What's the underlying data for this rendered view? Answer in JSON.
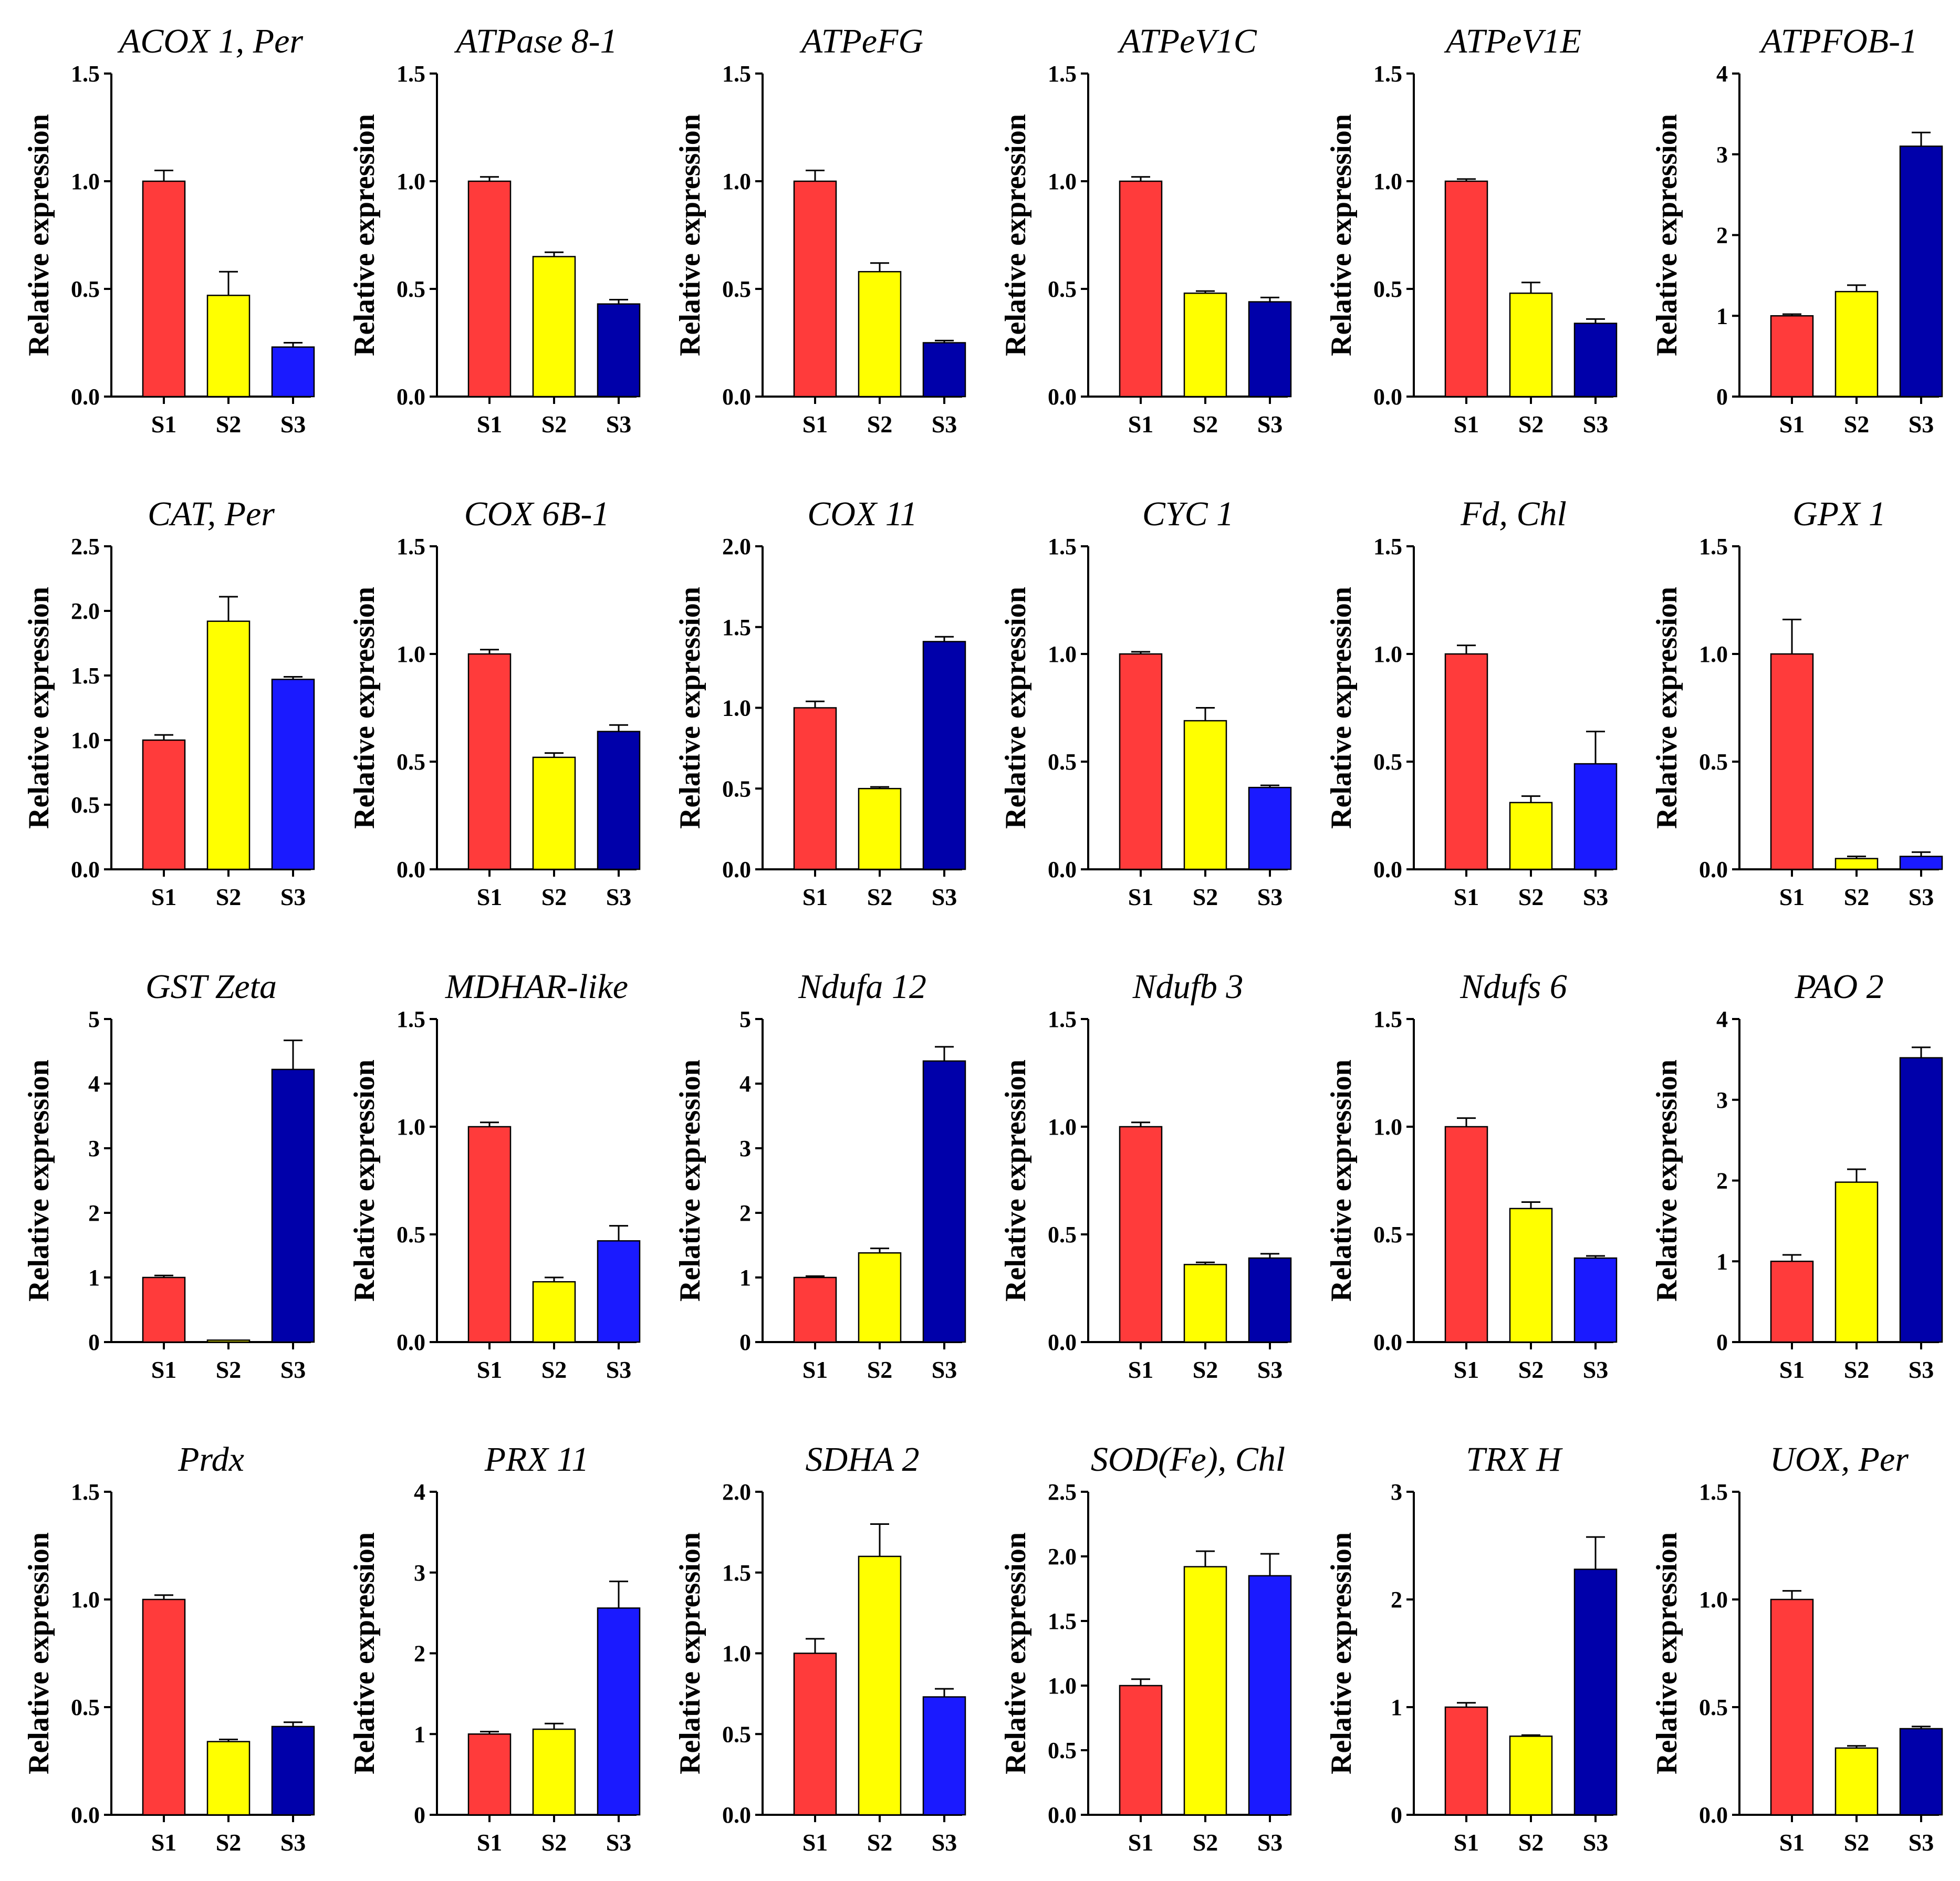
{
  "figure": {
    "ylabel": "Relative expression"
  },
  "colors": {
    "S1": "#ff3b3b",
    "S2": "#ffff00",
    "S3_light": "#1a1aff",
    "S3_dark": "#0000aa",
    "axis": "#000000"
  },
  "chart_data": [
    {
      "type": "bar",
      "title": "ACOX 1, Per",
      "ylabel": "Relative expression",
      "categories": [
        "S1",
        "S2",
        "S3"
      ],
      "values": [
        1.0,
        0.47,
        0.23
      ],
      "errors": [
        0.05,
        0.11,
        0.02
      ],
      "ylim": [
        0,
        1.5
      ],
      "yticks": [
        "0.0",
        "0.5",
        "1.0",
        "1.5"
      ],
      "s3_color": "light"
    },
    {
      "type": "bar",
      "title": "ATPase 8-1",
      "ylabel": "Relative expression",
      "categories": [
        "S1",
        "S2",
        "S3"
      ],
      "values": [
        1.0,
        0.65,
        0.43
      ],
      "errors": [
        0.02,
        0.02,
        0.02
      ],
      "ylim": [
        0,
        1.5
      ],
      "yticks": [
        "0.0",
        "0.5",
        "1.0",
        "1.5"
      ],
      "s3_color": "dark"
    },
    {
      "type": "bar",
      "title": "ATPeFG",
      "ylabel": "Relative expression",
      "categories": [
        "S1",
        "S2",
        "S3"
      ],
      "values": [
        1.0,
        0.58,
        0.25
      ],
      "errors": [
        0.05,
        0.04,
        0.01
      ],
      "ylim": [
        0,
        1.5
      ],
      "yticks": [
        "0.0",
        "0.5",
        "1.0",
        "1.5"
      ],
      "s3_color": "dark"
    },
    {
      "type": "bar",
      "title": "ATPeV1C",
      "ylabel": "Relative expression",
      "categories": [
        "S1",
        "S2",
        "S3"
      ],
      "values": [
        1.0,
        0.48,
        0.44
      ],
      "errors": [
        0.02,
        0.01,
        0.02
      ],
      "ylim": [
        0,
        1.5
      ],
      "yticks": [
        "0.0",
        "0.5",
        "1.0",
        "1.5"
      ],
      "s3_color": "dark"
    },
    {
      "type": "bar",
      "title": "ATPeV1E",
      "ylabel": "Relative expression",
      "categories": [
        "S1",
        "S2",
        "S3"
      ],
      "values": [
        1.0,
        0.48,
        0.34
      ],
      "errors": [
        0.01,
        0.05,
        0.02
      ],
      "ylim": [
        0,
        1.5
      ],
      "yticks": [
        "0.0",
        "0.5",
        "1.0",
        "1.5"
      ],
      "s3_color": "dark"
    },
    {
      "type": "bar",
      "title": "ATPFOB-1",
      "ylabel": "Relative expression",
      "categories": [
        "S1",
        "S2",
        "S3"
      ],
      "values": [
        1.0,
        1.3,
        3.1
      ],
      "errors": [
        0.02,
        0.08,
        0.17
      ],
      "ylim": [
        0,
        4
      ],
      "yticks": [
        "0",
        "1",
        "2",
        "3",
        "4"
      ],
      "s3_color": "dark"
    },
    {
      "type": "bar",
      "title": "CAT, Per",
      "ylabel": "Relative expression",
      "categories": [
        "S1",
        "S2",
        "S3"
      ],
      "values": [
        1.0,
        1.92,
        1.47
      ],
      "errors": [
        0.04,
        0.19,
        0.02
      ],
      "ylim": [
        0,
        2.5
      ],
      "yticks": [
        "0.0",
        "0.5",
        "1.0",
        "1.5",
        "2.0",
        "2.5"
      ],
      "s3_color": "light"
    },
    {
      "type": "bar",
      "title": "COX 6B-1",
      "ylabel": "Relative expression",
      "categories": [
        "S1",
        "S2",
        "S3"
      ],
      "values": [
        1.0,
        0.52,
        0.64
      ],
      "errors": [
        0.02,
        0.02,
        0.03
      ],
      "ylim": [
        0,
        1.5
      ],
      "yticks": [
        "0.0",
        "0.5",
        "1.0",
        "1.5"
      ],
      "s3_color": "dark"
    },
    {
      "type": "bar",
      "title": "COX 11",
      "ylabel": "Relative expression",
      "categories": [
        "S1",
        "S2",
        "S3"
      ],
      "values": [
        1.0,
        0.5,
        1.41
      ],
      "errors": [
        0.04,
        0.01,
        0.03
      ],
      "ylim": [
        0,
        2.0
      ],
      "yticks": [
        "0.0",
        "0.5",
        "1.0",
        "1.5",
        "2.0"
      ],
      "s3_color": "dark"
    },
    {
      "type": "bar",
      "title": "CYC 1",
      "ylabel": "Relative expression",
      "categories": [
        "S1",
        "S2",
        "S3"
      ],
      "values": [
        1.0,
        0.69,
        0.38
      ],
      "errors": [
        0.01,
        0.06,
        0.01
      ],
      "ylim": [
        0,
        1.5
      ],
      "yticks": [
        "0.0",
        "0.5",
        "1.0",
        "1.5"
      ],
      "s3_color": "light"
    },
    {
      "type": "bar",
      "title": "Fd, Chl",
      "ylabel": "Relative expression",
      "categories": [
        "S1",
        "S2",
        "S3"
      ],
      "values": [
        1.0,
        0.31,
        0.49
      ],
      "errors": [
        0.04,
        0.03,
        0.15
      ],
      "ylim": [
        0,
        1.5
      ],
      "yticks": [
        "0.0",
        "0.5",
        "1.0",
        "1.5"
      ],
      "s3_color": "light"
    },
    {
      "type": "bar",
      "title": "GPX 1",
      "ylabel": "Relative expression",
      "categories": [
        "S1",
        "S2",
        "S3"
      ],
      "values": [
        1.0,
        0.05,
        0.06
      ],
      "errors": [
        0.16,
        0.01,
        0.02
      ],
      "ylim": [
        0,
        1.5
      ],
      "yticks": [
        "0.0",
        "0.5",
        "1.0",
        "1.5"
      ],
      "s3_color": "light"
    },
    {
      "type": "bar",
      "title": "GST Zeta",
      "ylabel": "Relative expression",
      "categories": [
        "S1",
        "S2",
        "S3"
      ],
      "values": [
        1.0,
        0.03,
        4.22
      ],
      "errors": [
        0.03,
        0.0,
        0.45
      ],
      "ylim": [
        0,
        5
      ],
      "yticks": [
        "0",
        "1",
        "2",
        "3",
        "4",
        "5"
      ],
      "s3_color": "dark"
    },
    {
      "type": "bar",
      "title": "MDHAR-like",
      "ylabel": "Relative expression",
      "categories": [
        "S1",
        "S2",
        "S3"
      ],
      "values": [
        1.0,
        0.28,
        0.47
      ],
      "errors": [
        0.02,
        0.02,
        0.07
      ],
      "ylim": [
        0,
        1.5
      ],
      "yticks": [
        "0.0",
        "0.5",
        "1.0",
        "1.5"
      ],
      "s3_color": "light"
    },
    {
      "type": "bar",
      "title": "Ndufa 12",
      "ylabel": "Relative expression",
      "categories": [
        "S1",
        "S2",
        "S3"
      ],
      "values": [
        1.0,
        1.38,
        4.35
      ],
      "errors": [
        0.02,
        0.07,
        0.22
      ],
      "ylim": [
        0,
        5
      ],
      "yticks": [
        "0",
        "1",
        "2",
        "3",
        "4",
        "5"
      ],
      "s3_color": "dark"
    },
    {
      "type": "bar",
      "title": "Ndufb 3",
      "ylabel": "Relative expression",
      "categories": [
        "S1",
        "S2",
        "S3"
      ],
      "values": [
        1.0,
        0.36,
        0.39
      ],
      "errors": [
        0.02,
        0.01,
        0.02
      ],
      "ylim": [
        0,
        1.5
      ],
      "yticks": [
        "0.0",
        "0.5",
        "1.0",
        "1.5"
      ],
      "s3_color": "dark"
    },
    {
      "type": "bar",
      "title": "Ndufs 6",
      "ylabel": "Relative expression",
      "categories": [
        "S1",
        "S2",
        "S3"
      ],
      "values": [
        1.0,
        0.62,
        0.39
      ],
      "errors": [
        0.04,
        0.03,
        0.01
      ],
      "ylim": [
        0,
        1.5
      ],
      "yticks": [
        "0.0",
        "0.5",
        "1.0",
        "1.5"
      ],
      "s3_color": "light"
    },
    {
      "type": "bar",
      "title": "PAO 2",
      "ylabel": "Relative expression",
      "categories": [
        "S1",
        "S2",
        "S3"
      ],
      "values": [
        1.0,
        1.98,
        3.52
      ],
      "errors": [
        0.08,
        0.16,
        0.13
      ],
      "ylim": [
        0,
        4
      ],
      "yticks": [
        "0",
        "1",
        "2",
        "3",
        "4"
      ],
      "s3_color": "dark"
    },
    {
      "type": "bar",
      "title": "Prdx",
      "ylabel": "Relative expression",
      "categories": [
        "S1",
        "S2",
        "S3"
      ],
      "values": [
        1.0,
        0.34,
        0.41
      ],
      "errors": [
        0.02,
        0.01,
        0.02
      ],
      "ylim": [
        0,
        1.5
      ],
      "yticks": [
        "0.0",
        "0.5",
        "1.0",
        "1.5"
      ],
      "s3_color": "dark"
    },
    {
      "type": "bar",
      "title": "PRX 11",
      "ylabel": "Relative expression",
      "categories": [
        "S1",
        "S2",
        "S3"
      ],
      "values": [
        1.0,
        1.06,
        2.56
      ],
      "errors": [
        0.03,
        0.07,
        0.33
      ],
      "ylim": [
        0,
        4
      ],
      "yticks": [
        "0",
        "1",
        "2",
        "3",
        "4"
      ],
      "s3_color": "light"
    },
    {
      "type": "bar",
      "title": "SDHA 2",
      "ylabel": "Relative expression",
      "categories": [
        "S1",
        "S2",
        "S3"
      ],
      "values": [
        1.0,
        1.6,
        0.73
      ],
      "errors": [
        0.09,
        0.2,
        0.05
      ],
      "ylim": [
        0,
        2.0
      ],
      "yticks": [
        "0.0",
        "0.5",
        "1.0",
        "1.5",
        "2.0"
      ],
      "s3_color": "light"
    },
    {
      "type": "bar",
      "title": "SOD(Fe), Chl",
      "ylabel": "Relative expression",
      "categories": [
        "S1",
        "S2",
        "S3"
      ],
      "values": [
        1.0,
        1.92,
        1.85
      ],
      "errors": [
        0.05,
        0.12,
        0.17
      ],
      "ylim": [
        0,
        2.5
      ],
      "yticks": [
        "0.0",
        "0.5",
        "1.0",
        "1.5",
        "2.0",
        "2.5"
      ],
      "s3_color": "light"
    },
    {
      "type": "bar",
      "title": "TRX H",
      "ylabel": "Relative expression",
      "categories": [
        "S1",
        "S2",
        "S3"
      ],
      "values": [
        1.0,
        0.73,
        2.28
      ],
      "errors": [
        0.04,
        0.01,
        0.3
      ],
      "ylim": [
        0,
        3
      ],
      "yticks": [
        "0",
        "1",
        "2",
        "3"
      ],
      "s3_color": "dark"
    },
    {
      "type": "bar",
      "title": "UOX, Per",
      "ylabel": "Relative expression",
      "categories": [
        "S1",
        "S2",
        "S3"
      ],
      "values": [
        1.0,
        0.31,
        0.4
      ],
      "errors": [
        0.04,
        0.01,
        0.01
      ],
      "ylim": [
        0,
        1.5
      ],
      "yticks": [
        "0.0",
        "0.5",
        "1.0",
        "1.5"
      ],
      "s3_color": "dark"
    }
  ]
}
